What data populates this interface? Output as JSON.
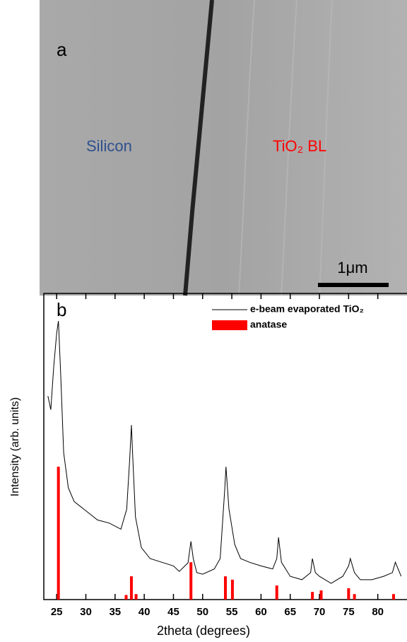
{
  "image": {
    "panel_label": "a",
    "region_left": "Silicon",
    "region_right": "TiO₂ BL",
    "scale_bar": "1μm"
  },
  "chart_data": {
    "type": "line",
    "panel_label": "b",
    "x_label": "2theta (degrees)",
    "y_label": "Intensity (arb. units)",
    "xlim": [
      22.8,
      85
    ],
    "xticks": [
      25,
      30,
      35,
      40,
      45,
      50,
      55,
      60,
      65,
      70,
      75,
      80
    ],
    "ylim": [
      0,
      100
    ],
    "legend": "top-right",
    "series": [
      {
        "name": "e-beam evaporated TiO₂",
        "type": "line",
        "color": "#000000",
        "x": [
          23.5,
          24.0,
          24.5,
          25.0,
          25.3,
          25.7,
          26.2,
          27,
          28,
          30,
          32,
          34,
          36,
          37,
          37.5,
          37.8,
          38.0,
          38.5,
          39.5,
          41,
          43,
          45,
          46,
          47.5,
          48.0,
          48.4,
          49,
          50,
          52,
          53,
          53.8,
          54.0,
          54.5,
          55.0,
          55.5,
          56.5,
          58,
          60,
          62,
          62.7,
          63,
          63.5,
          65,
          67,
          68.5,
          68.8,
          69.3,
          70,
          72,
          74,
          75,
          75.3,
          76,
          77,
          79,
          81,
          82.5,
          83,
          84
        ],
        "values": [
          66.5,
          62,
          76,
          87,
          91,
          73,
          48,
          36.5,
          32,
          29,
          26,
          25,
          23,
          29.5,
          45.7,
          57,
          48,
          27,
          17,
          13.4,
          12.2,
          11,
          9.2,
          12,
          19,
          13.4,
          8.8,
          8.3,
          10,
          13.4,
          36.5,
          43.4,
          29.6,
          23.8,
          18,
          13.4,
          12.2,
          11,
          10,
          13.4,
          20.3,
          12.2,
          7.6,
          6.5,
          8.8,
          13.4,
          8.8,
          7.6,
          5.3,
          7.6,
          11,
          13.4,
          8.8,
          6.5,
          6.5,
          7.6,
          8.8,
          12.2,
          7.6
        ]
      },
      {
        "name": "anatase",
        "type": "bar",
        "color": "#ff0000",
        "x": [
          25.3,
          36.9,
          37.8,
          38.6,
          48.0,
          53.9,
          55.1,
          62.7,
          68.8,
          70.3,
          75.0,
          76.0,
          82.7
        ],
        "values": [
          43.4,
          1.5,
          7.6,
          1.8,
          12.2,
          7.6,
          6.5,
          4.6,
          2.5,
          3,
          3.7,
          1.8,
          1.8
        ]
      }
    ]
  }
}
